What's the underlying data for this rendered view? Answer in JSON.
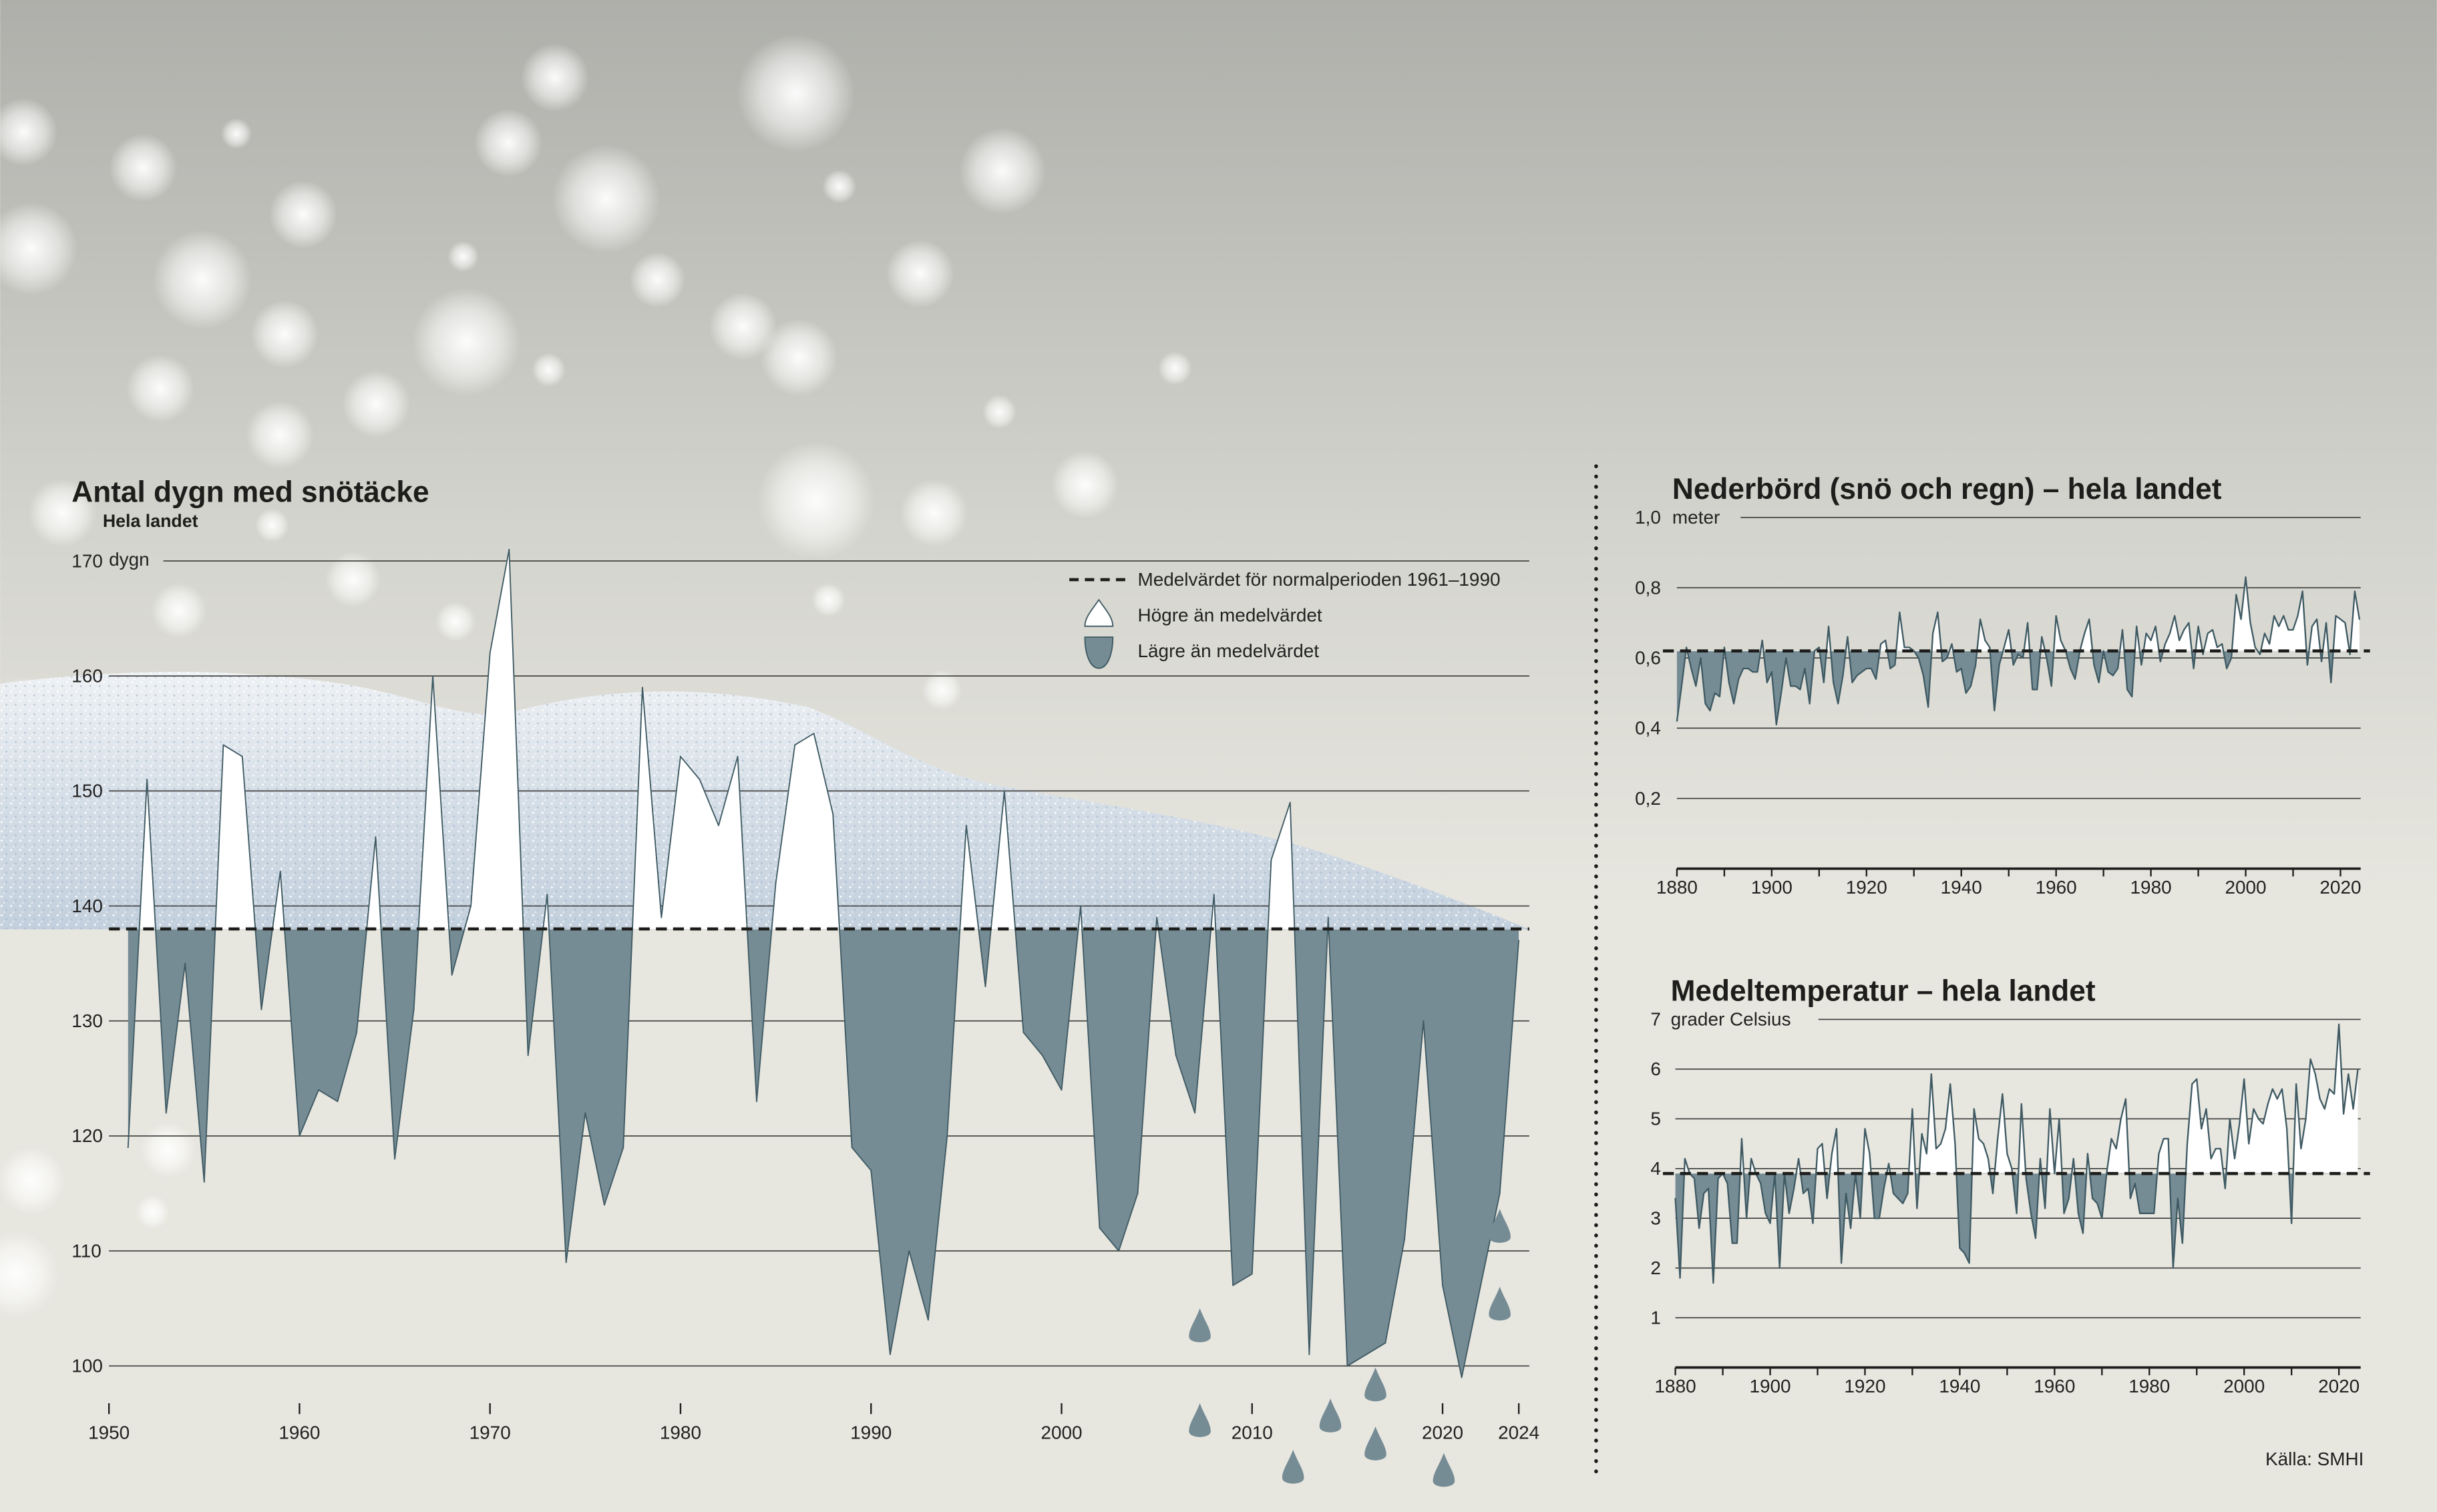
{
  "colors": {
    "below": "#768c95",
    "above": "#ffffff",
    "line": "#3f5a63",
    "mean": "#1d1d1b",
    "bg": "#e7e6df"
  },
  "source": "Källa: SMHI",
  "legend": {
    "mean": "Medelvärdet för normalperioden 1961–1990",
    "above": "Högre än medelvärdet",
    "below": "Lägre än medelvärdet"
  },
  "chart_data": [
    {
      "type": "area",
      "title": "Antal dygn med snötäcke",
      "subtitle": "Hela landet",
      "ylabel": "dygn",
      "ylim": [
        100,
        170
      ],
      "yticks": [
        "170",
        "160",
        "150",
        "140",
        "130",
        "120",
        "110",
        "100"
      ],
      "xticks": [
        "1950",
        "1960",
        "1970",
        "1980",
        "1990",
        "2000",
        "2010",
        "2020",
        "2024"
      ],
      "mean": 138,
      "x_start": 1951,
      "values": [
        119,
        151,
        122,
        135,
        116,
        154,
        153,
        131,
        143,
        120,
        124,
        123,
        129,
        146,
        118,
        131,
        160,
        134,
        140,
        162,
        171,
        127,
        141,
        109,
        122,
        114,
        119,
        159,
        139,
        153,
        151,
        147,
        153,
        123,
        142,
        154,
        155,
        148,
        119,
        117,
        101,
        110,
        104,
        120,
        147,
        133,
        150,
        129,
        127,
        124,
        140,
        112,
        110,
        115,
        139,
        127,
        122,
        141,
        107,
        108,
        144,
        149,
        101,
        139,
        100,
        101,
        102,
        111,
        130,
        107,
        99,
        107,
        115,
        137
      ]
    },
    {
      "type": "area",
      "title": "Nederbörd (snö och regn) – hela landet",
      "ylabel": "meter",
      "ylim": [
        0,
        1.0
      ],
      "yticks": [
        "1,0",
        "0,8",
        "0,6",
        "0,4",
        "0,2"
      ],
      "xticks": [
        "1880",
        "1900",
        "1920",
        "1940",
        "1960",
        "1980",
        "2000",
        "2020"
      ],
      "mean": 0.62,
      "x_start": 1880,
      "values": [
        0.42,
        0.52,
        0.63,
        0.57,
        0.52,
        0.6,
        0.47,
        0.45,
        0.5,
        0.49,
        0.63,
        0.53,
        0.47,
        0.54,
        0.57,
        0.57,
        0.56,
        0.56,
        0.65,
        0.53,
        0.56,
        0.41,
        0.5,
        0.6,
        0.52,
        0.52,
        0.51,
        0.57,
        0.47,
        0.62,
        0.63,
        0.53,
        0.69,
        0.53,
        0.47,
        0.55,
        0.66,
        0.53,
        0.55,
        0.56,
        0.57,
        0.57,
        0.54,
        0.64,
        0.65,
        0.57,
        0.58,
        0.73,
        0.63,
        0.63,
        0.62,
        0.6,
        0.55,
        0.46,
        0.67,
        0.73,
        0.59,
        0.6,
        0.64,
        0.56,
        0.57,
        0.5,
        0.52,
        0.58,
        0.71,
        0.65,
        0.63,
        0.45,
        0.58,
        0.63,
        0.68,
        0.58,
        0.61,
        0.6,
        0.7,
        0.51,
        0.51,
        0.66,
        0.6,
        0.52,
        0.72,
        0.65,
        0.62,
        0.57,
        0.54,
        0.62,
        0.67,
        0.71,
        0.58,
        0.53,
        0.62,
        0.56,
        0.55,
        0.57,
        0.68,
        0.51,
        0.49,
        0.69,
        0.58,
        0.67,
        0.65,
        0.69,
        0.59,
        0.64,
        0.67,
        0.72,
        0.65,
        0.68,
        0.7,
        0.57,
        0.69,
        0.61,
        0.67,
        0.68,
        0.63,
        0.64,
        0.57,
        0.6,
        0.78,
        0.71,
        0.83,
        0.7,
        0.63,
        0.61,
        0.67,
        0.64,
        0.72,
        0.69,
        0.72,
        0.68,
        0.68,
        0.72,
        0.79,
        0.58,
        0.69,
        0.71,
        0.59,
        0.7,
        0.53,
        0.72,
        0.71,
        0.7,
        0.61,
        0.79,
        0.71
      ]
    },
    {
      "type": "area",
      "title": "Medeltemperatur – hela landet",
      "ylabel": "grader Celsius",
      "ylim": [
        0,
        7
      ],
      "yticks": [
        "7",
        "6",
        "5",
        "4",
        "3",
        "2",
        "1"
      ],
      "xticks": [
        "1880",
        "1900",
        "1920",
        "1940",
        "1960",
        "1980",
        "2000",
        "2020"
      ],
      "mean": 3.9,
      "x_start": 1880,
      "values": [
        3.4,
        1.8,
        4.2,
        3.9,
        3.8,
        2.8,
        3.5,
        3.6,
        1.7,
        3.8,
        3.9,
        3.7,
        2.5,
        2.5,
        4.6,
        3.0,
        4.2,
        3.9,
        3.7,
        3.1,
        2.9,
        3.9,
        2.0,
        3.9,
        3.1,
        3.6,
        4.2,
        3.5,
        3.6,
        2.9,
        4.4,
        4.5,
        3.4,
        4.3,
        4.8,
        2.1,
        3.5,
        2.8,
        3.9,
        3.0,
        4.8,
        4.3,
        3.0,
        3.0,
        3.6,
        4.1,
        3.5,
        3.4,
        3.3,
        3.5,
        5.2,
        3.2,
        4.7,
        4.3,
        5.9,
        4.4,
        4.5,
        4.8,
        5.7,
        4.5,
        2.4,
        2.3,
        2.1,
        5.2,
        4.6,
        4.5,
        4.2,
        3.5,
        4.6,
        5.5,
        4.3,
        4.0,
        3.1,
        5.3,
        3.8,
        3.1,
        2.6,
        4.2,
        3.2,
        5.2,
        3.9,
        5.0,
        3.1,
        3.4,
        4.2,
        3.1,
        2.7,
        4.3,
        3.4,
        3.3,
        3.0,
        3.9,
        4.6,
        4.4,
        5.0,
        5.4,
        3.4,
        3.7,
        3.1,
        3.1,
        3.1,
        3.1,
        4.3,
        4.6,
        4.6,
        2.0,
        3.4,
        2.5,
        4.5,
        5.7,
        5.8,
        4.8,
        5.2,
        4.2,
        4.4,
        4.4,
        3.6,
        5.0,
        4.2,
        4.9,
        5.8,
        4.5,
        5.2,
        5.0,
        4.9,
        5.3,
        5.6,
        5.4,
        5.6,
        4.8,
        2.9,
        5.7,
        4.4,
        5.0,
        6.2,
        5.9,
        5.4,
        5.2,
        5.6,
        5.5,
        6.9,
        5.1,
        5.9,
        5.2,
        6.0
      ]
    }
  ]
}
